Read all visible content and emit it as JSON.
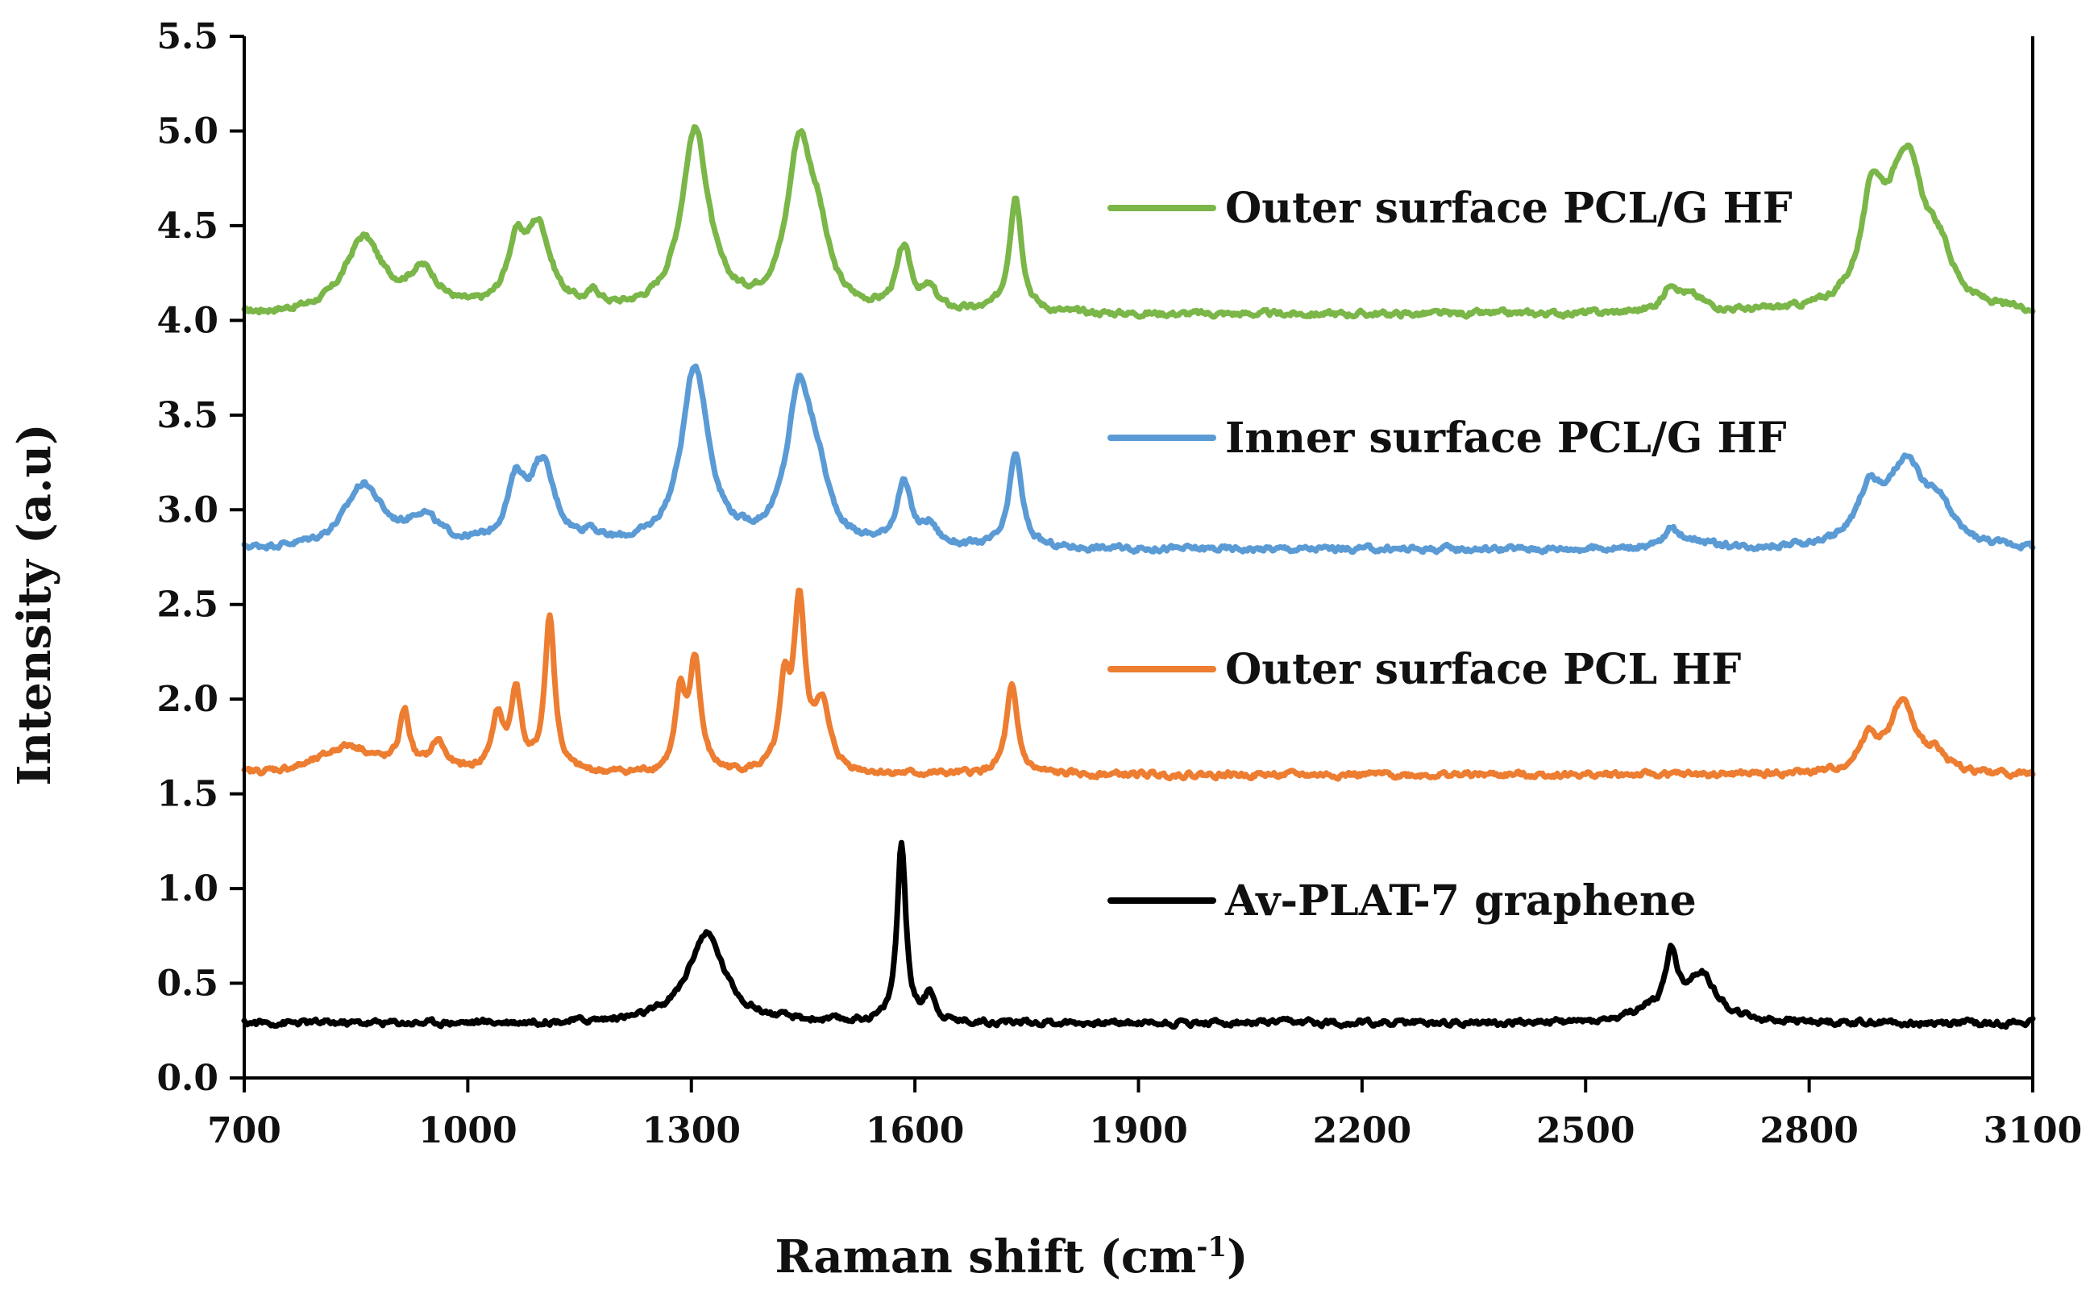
{
  "chart_data": {
    "type": "line",
    "title": "",
    "xlabel": "Raman shift (cm",
    "xlabel_sup": "-1",
    "xlabel_close": ")",
    "ylabel": "Intensity (a.u)",
    "xlim": [
      700,
      3100
    ],
    "ylim": [
      0.0,
      5.5
    ],
    "x_ticks": [
      700,
      1000,
      1300,
      1600,
      1900,
      2200,
      2500,
      2800,
      3100
    ],
    "x_tick_labels": [
      "700",
      "1000",
      "1300",
      "1600",
      "1900",
      "2200",
      "2500",
      "2800",
      "3100"
    ],
    "y_ticks": [
      0.0,
      0.5,
      1.0,
      1.5,
      2.0,
      2.5,
      3.0,
      3.5,
      4.0,
      4.5,
      5.0,
      5.5
    ],
    "y_tick_labels": [
      "0.0",
      "0.5",
      "1.0",
      "1.5",
      "2.0",
      "2.5",
      "3.0",
      "3.5",
      "4.0",
      "4.5",
      "5.0",
      "5.5"
    ],
    "series": [
      {
        "name": "Outer surface PCL/G HF",
        "color": "#7ab648",
        "baseline": 4.03,
        "peaks": [
          [
            860,
            0.39,
            30
          ],
          [
            940,
            0.2,
            25
          ],
          [
            1065,
            0.3,
            15
          ],
          [
            1095,
            0.42,
            20
          ],
          [
            1170,
            0.07,
            10
          ],
          [
            1305,
            0.96,
            22
          ],
          [
            1445,
            0.84,
            20
          ],
          [
            1470,
            0.3,
            18
          ],
          [
            1585,
            0.32,
            12
          ],
          [
            1620,
            0.1,
            12
          ],
          [
            1735,
            0.62,
            10
          ],
          [
            2615,
            0.12,
            12
          ],
          [
            2640,
            0.08,
            25
          ],
          [
            2885,
            0.5,
            18
          ],
          [
            2930,
            0.8,
            30
          ],
          [
            2975,
            0.2,
            20
          ]
        ]
      },
      {
        "name": "Inner surface PCL/G HF",
        "color": "#5b9bd5",
        "baseline": 2.79,
        "peaks": [
          [
            860,
            0.33,
            30
          ],
          [
            940,
            0.15,
            25
          ],
          [
            1065,
            0.3,
            15
          ],
          [
            1100,
            0.42,
            20
          ],
          [
            1165,
            0.06,
            10
          ],
          [
            1305,
            0.95,
            22
          ],
          [
            1445,
            0.8,
            20
          ],
          [
            1470,
            0.25,
            18
          ],
          [
            1585,
            0.32,
            12
          ],
          [
            1620,
            0.1,
            12
          ],
          [
            1735,
            0.5,
            10
          ],
          [
            2615,
            0.08,
            10
          ],
          [
            2640,
            0.05,
            25
          ],
          [
            2880,
            0.25,
            18
          ],
          [
            2930,
            0.43,
            32
          ],
          [
            2975,
            0.15,
            20
          ]
        ]
      },
      {
        "name": "Outer surface PCL HF",
        "color": "#ed7d31",
        "baseline": 1.6,
        "peaks": [
          [
            840,
            0.15,
            45
          ],
          [
            915,
            0.3,
            8
          ],
          [
            960,
            0.15,
            12
          ],
          [
            1040,
            0.28,
            10
          ],
          [
            1065,
            0.42,
            8
          ],
          [
            1110,
            0.82,
            8
          ],
          [
            1285,
            0.38,
            8
          ],
          [
            1305,
            0.58,
            9
          ],
          [
            1425,
            0.4,
            8
          ],
          [
            1445,
            0.88,
            9
          ],
          [
            1475,
            0.35,
            12
          ],
          [
            1730,
            0.46,
            9
          ],
          [
            2880,
            0.18,
            15
          ],
          [
            2925,
            0.37,
            20
          ],
          [
            2970,
            0.1,
            15
          ]
        ]
      },
      {
        "name": "Av-PLAT-7 graphene",
        "color": "#000000",
        "baseline": 0.29,
        "peaks": [
          [
            1320,
            0.47,
            30
          ],
          [
            1582,
            0.95,
            7
          ],
          [
            1620,
            0.15,
            8
          ],
          [
            2615,
            0.32,
            10
          ],
          [
            2655,
            0.25,
            25
          ],
          [
            2580,
            0.05,
            20
          ]
        ]
      }
    ],
    "legend_labels": [
      "Outer surface PCL/G HF",
      "Inner surface PCL/G HF",
      "Outer surface PCL HF",
      "Av-PLAT-7 graphene"
    ]
  }
}
